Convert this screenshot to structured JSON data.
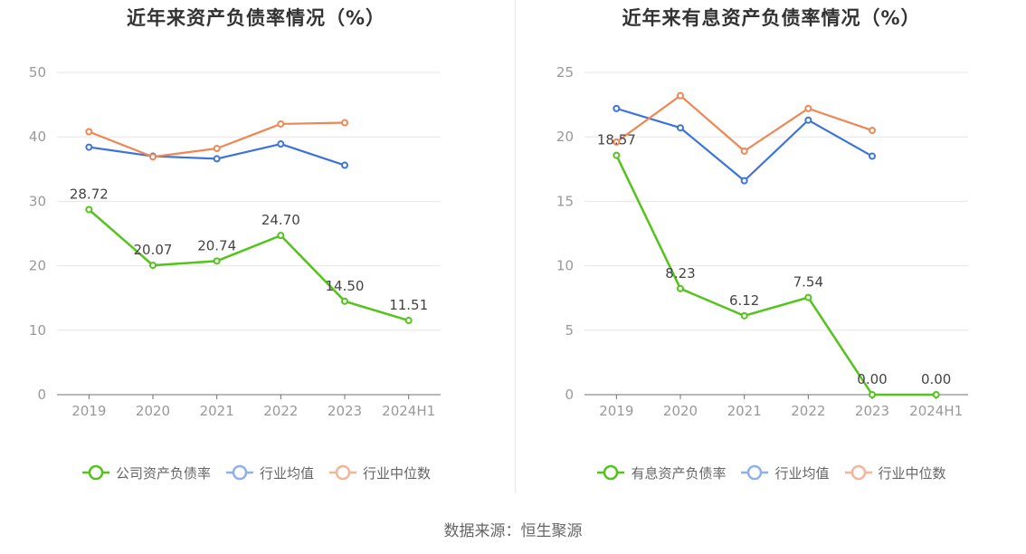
{
  "footer": {
    "source": "数据来源：恒生聚源"
  },
  "chart_data": [
    {
      "type": "line",
      "title": "近年来资产负债率情况（%）",
      "categories": [
        "2019",
        "2020",
        "2021",
        "2022",
        "2023",
        "2024H1"
      ],
      "ylim": [
        0,
        50
      ],
      "yticks": [
        0,
        10,
        20,
        30,
        40,
        50
      ],
      "grid": true,
      "legend_position": "bottom",
      "series": [
        {
          "name": "公司资产负债率",
          "color": "#52c41a",
          "values": [
            28.72,
            20.07,
            20.74,
            24.7,
            14.5,
            11.51
          ],
          "labels": [
            "28.72",
            "20.07",
            "20.74",
            "24.70",
            "14.50",
            "11.51"
          ]
        },
        {
          "name": "行业均值",
          "color": "#3b73db",
          "values": [
            38.4,
            37.0,
            36.6,
            38.9,
            35.6,
            null
          ]
        },
        {
          "name": "行业中位数",
          "color": "#ee8754",
          "values": [
            40.8,
            36.9,
            38.2,
            42.0,
            42.2,
            null
          ]
        }
      ]
    },
    {
      "type": "line",
      "title": "近年来有息资产负债率情况（%）",
      "categories": [
        "2019",
        "2020",
        "2021",
        "2022",
        "2023",
        "2024H1"
      ],
      "ylim": [
        0,
        25
      ],
      "yticks": [
        0,
        5,
        10,
        15,
        20,
        25
      ],
      "grid": true,
      "legend_position": "bottom",
      "series": [
        {
          "name": "有息资产负债率",
          "color": "#52c41a",
          "values": [
            18.57,
            8.23,
            6.12,
            7.54,
            0.0,
            0.0
          ],
          "labels": [
            "18.57",
            "8.23",
            "6.12",
            "7.54",
            "0.00",
            "0.00"
          ]
        },
        {
          "name": "行业均值",
          "color": "#3b73db",
          "values": [
            22.2,
            20.7,
            16.6,
            21.3,
            18.5,
            null
          ]
        },
        {
          "name": "行业中位数",
          "color": "#ee8754",
          "values": [
            19.6,
            23.2,
            18.9,
            22.2,
            20.5,
            null
          ]
        }
      ]
    }
  ]
}
